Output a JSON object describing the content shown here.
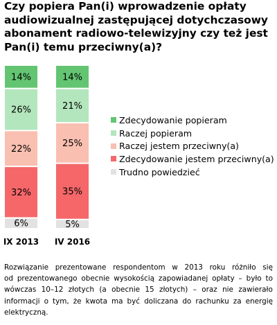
{
  "title": {
    "lines": [
      "Czy popiera Pan(i) wprowadzenie opłaty",
      "audiowizualnej zastępującej dotychczasowy",
      "abonament radiowo-telewizyjny czy też jest",
      "Pan(i) temu przeciwny(a)?"
    ]
  },
  "chart_data": {
    "type": "bar",
    "stacked": true,
    "categories": [
      "IX 2013",
      "IV 2016"
    ],
    "series": [
      {
        "name": "Zdecydowanie popieram",
        "values": [
          14,
          14
        ],
        "color": "#63c572"
      },
      {
        "name": "Raczej popieram",
        "values": [
          26,
          21
        ],
        "color": "#b3e6bd"
      },
      {
        "name": "Raczej jestem przeciwny(a)",
        "values": [
          22,
          25
        ],
        "color": "#f9bfb1"
      },
      {
        "name": "Zdecydowanie jestem przeciwny(a)",
        "values": [
          32,
          35
        ],
        "color": "#f56769"
      },
      {
        "name": "Trudno powiedzieć",
        "values": [
          6,
          5
        ],
        "color": "#e2e2e2"
      }
    ],
    "value_suffix": "%",
    "legend_position": "right",
    "grid": false
  },
  "note": {
    "lines": [
      "Rozwiązanie prezentowane respondentom w 2013 roku różniło się",
      "od prezentowanego obecnie wysokością zapowiadanej opłaty – było to",
      "wówczas 10–12 złotych (a obecnie 15 złotych) – oraz nie zawierało",
      "informacji o tym, że kwota ma być doliczana do rachunku za energię",
      "elektryczną."
    ]
  }
}
